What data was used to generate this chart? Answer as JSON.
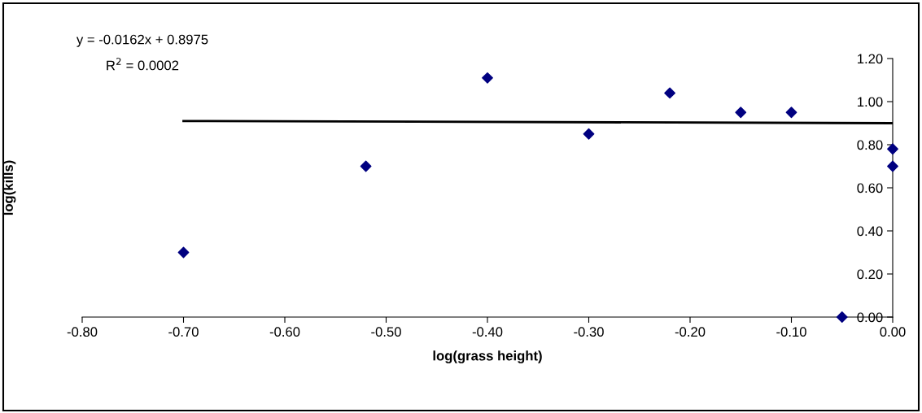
{
  "chart_data": {
    "type": "scatter",
    "xlabel": "log(grass height)",
    "ylabel": "log(kills)",
    "annotations": [
      "y = -0.0162x + 0.8975",
      "R$^{2}$ = 0.0002"
    ],
    "x": [
      -0.7,
      -0.52,
      -0.4,
      -0.3,
      -0.22,
      -0.15,
      -0.1,
      -0.05,
      0.0,
      0.0
    ],
    "series": [
      {
        "color": "#000080",
        "marker": "diamond",
        "values": [
          0.3,
          0.7,
          1.11,
          0.85,
          1.04,
          0.95,
          0.95,
          0.0,
          0.78,
          0.7
        ]
      },
      {
        "type": "line",
        "color": "#000000",
        "marker": "none",
        "x": [
          -0.7,
          0.0
        ],
        "values": [
          0.91,
          0.9
        ]
      }
    ],
    "xlim": [
      -0.8,
      0.0
    ],
    "ylim": [
      0,
      1.2
    ],
    "xticks": [
      {
        "value": -0.8,
        "label": "-0.80"
      },
      {
        "value": -0.7,
        "label": "-0.70"
      },
      {
        "value": -0.6,
        "label": "-0.60"
      },
      {
        "value": -0.5,
        "label": "-0.50"
      },
      {
        "value": -0.4,
        "label": "-0.40"
      },
      {
        "value": -0.3,
        "label": "-0.30"
      },
      {
        "value": -0.2,
        "label": "-0.20"
      },
      {
        "value": -0.1,
        "label": "-0.10"
      },
      {
        "value": 0,
        "label": "0.00"
      }
    ],
    "yticks": [
      {
        "value": 0,
        "label": "0.00"
      },
      {
        "value": 0.2,
        "label": "0.20"
      },
      {
        "value": 0.4,
        "label": "0.40"
      },
      {
        "value": 0.6,
        "label": "0.60"
      },
      {
        "value": 0.8,
        "label": "0.80"
      },
      {
        "value": 1.0,
        "label": "1.00"
      },
      {
        "value": 1.2,
        "label": "1.20"
      }
    ],
    "grid": false,
    "legend": false
  }
}
